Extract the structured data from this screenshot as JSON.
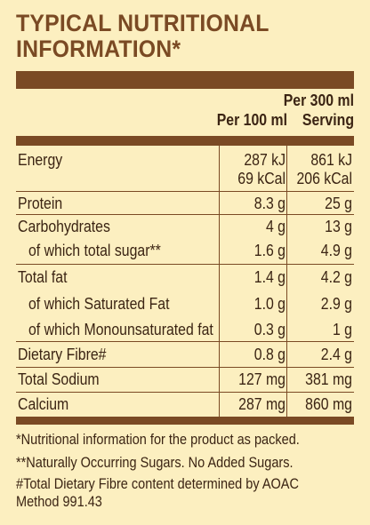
{
  "title": {
    "line1": "TYPICAL NUTRITIONAL",
    "line2": "INFORMATION*"
  },
  "header": {
    "col1": "Per 100 ml",
    "col2_line1": "Per 300 ml",
    "col2_line2": "Serving"
  },
  "rows": [
    {
      "label": "Energy",
      "v1": "287 kJ",
      "v1b": "69 kCal",
      "v2": "861 kJ",
      "v2b": "206 kCal"
    },
    {
      "label": "Protein",
      "v1": "8.3 g",
      "v2": "25 g"
    },
    {
      "label": "Carbohydrates",
      "v1": "4 g",
      "v2": "13 g"
    },
    {
      "label": "of which total sugar**",
      "v1": "1.6 g",
      "v2": "4.9 g"
    },
    {
      "label": "Total fat",
      "v1": "1.4 g",
      "v2": "4.2 g"
    },
    {
      "label": "of which Saturated Fat",
      "v1": "1.0 g",
      "v2": "2.9 g"
    },
    {
      "label": "of which Monounsaturated fat",
      "v1": "0.3 g",
      "v2": "1 g"
    },
    {
      "label": "Dietary Fibre#",
      "v1": "0.8 g",
      "v2": "2.4 g"
    },
    {
      "label": "Total Sodium",
      "v1": "127 mg",
      "v2": "381 mg"
    },
    {
      "label": "Calcium",
      "v1": "287 mg",
      "v2": "860 mg"
    }
  ],
  "footnotes": [
    "*Nutritional information for the product as packed.",
    "**Naturally Occurring Sugars. No Added Sugars.",
    "#Total Dietary Fibre content determined by AOAC",
    "Method 991.43"
  ],
  "colors": {
    "brown": "#7a4a24",
    "background": "#fcefc0",
    "text": "#3b2413"
  }
}
